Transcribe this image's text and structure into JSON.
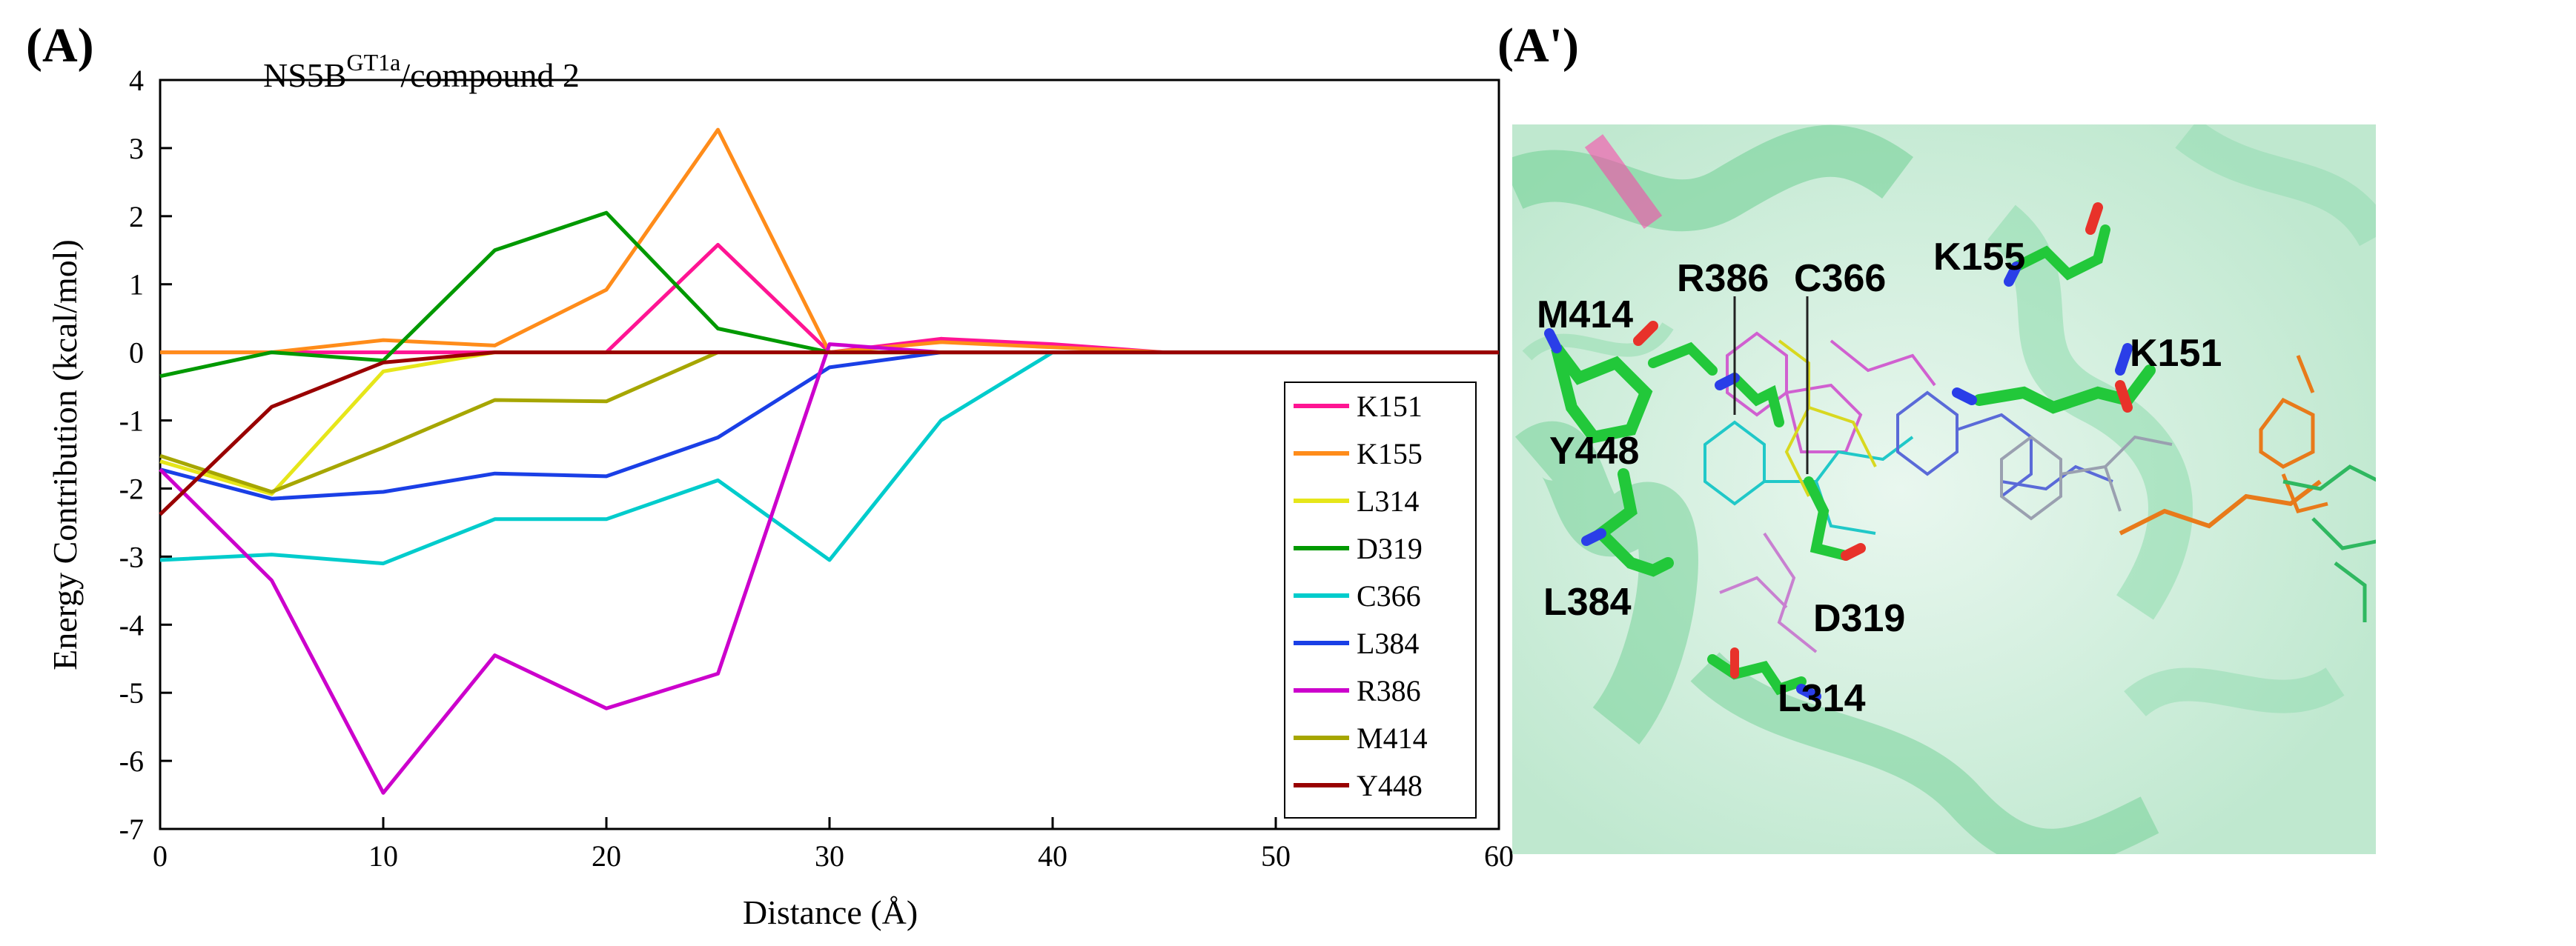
{
  "panels": {
    "left_label": "(A)",
    "right_label": "(A')"
  },
  "chart_data": {
    "type": "line",
    "title_main": "NS5B",
    "title_sup": "GT1a",
    "title_rest": "/compound 2",
    "xlabel": "Distance (Å)",
    "ylabel": "Energy Contribution (kcal/mol)",
    "xlim": [
      0,
      60
    ],
    "ylim": [
      -7,
      4
    ],
    "xticks": [
      0,
      10,
      20,
      30,
      40,
      50,
      60
    ],
    "yticks": [
      -7,
      -6,
      -5,
      -4,
      -3,
      -2,
      -1,
      0,
      1,
      2,
      3,
      4
    ],
    "series": [
      {
        "name": "K151",
        "color": "#ff1493",
        "x": [
          0,
          5,
          10,
          15,
          20,
          25,
          30,
          35,
          40,
          45,
          60
        ],
        "y": [
          0,
          0,
          0,
          0,
          0,
          1.58,
          0,
          0.2,
          0.12,
          0,
          0
        ]
      },
      {
        "name": "K155",
        "color": "#ff8c1a",
        "x": [
          0,
          5,
          10,
          15,
          20,
          25,
          30,
          35,
          45,
          60
        ],
        "y": [
          0,
          0,
          0.18,
          0.1,
          0.92,
          3.27,
          0,
          0.15,
          0,
          0
        ]
      },
      {
        "name": "L314",
        "color": "#e6e61a",
        "x": [
          0,
          5,
          10,
          15,
          60
        ],
        "y": [
          -1.6,
          -2.08,
          -0.28,
          0,
          0
        ]
      },
      {
        "name": "D319",
        "color": "#009900",
        "x": [
          0,
          5,
          10,
          15,
          20,
          25,
          30,
          60
        ],
        "y": [
          -0.35,
          0,
          -0.12,
          1.5,
          2.05,
          0.35,
          0,
          0
        ]
      },
      {
        "name": "C366",
        "color": "#00cccc",
        "x": [
          0,
          5,
          10,
          15,
          20,
          25,
          30,
          35,
          40,
          60
        ],
        "y": [
          -3.05,
          -2.97,
          -3.1,
          -2.45,
          -2.45,
          -1.88,
          -3.05,
          -1.0,
          0,
          0
        ]
      },
      {
        "name": "L384",
        "color": "#1a3fe6",
        "x": [
          0,
          5,
          10,
          15,
          20,
          25,
          30,
          35,
          60
        ],
        "y": [
          -1.72,
          -2.15,
          -2.05,
          -1.78,
          -1.82,
          -1.25,
          -0.22,
          0,
          0
        ]
      },
      {
        "name": "R386",
        "color": "#cc00cc",
        "x": [
          0,
          5,
          10,
          15,
          20,
          25,
          30,
          35,
          60
        ],
        "y": [
          -1.72,
          -3.35,
          -6.47,
          -4.45,
          -5.23,
          -4.72,
          0.12,
          0,
          0
        ]
      },
      {
        "name": "M414",
        "color": "#a6a600",
        "x": [
          0,
          5,
          10,
          15,
          20,
          25,
          60
        ],
        "y": [
          -1.52,
          -2.05,
          -1.4,
          -0.7,
          -0.72,
          0,
          0
        ]
      },
      {
        "name": "Y448",
        "color": "#990000",
        "x": [
          0,
          5,
          10,
          15,
          60
        ],
        "y": [
          -2.38,
          -0.8,
          -0.15,
          0,
          0
        ]
      }
    ]
  },
  "structure_view": {
    "residue_labels": [
      "K155",
      "R386",
      "C366",
      "M414",
      "K151",
      "Y448",
      "L384",
      "D319",
      "L314"
    ],
    "colors": {
      "background": "#c8ecd6",
      "helix": "#3ab86a",
      "carbon": "#22c83a",
      "oxygen": "#e8322a",
      "nitrogen": "#2a3ee8"
    }
  }
}
